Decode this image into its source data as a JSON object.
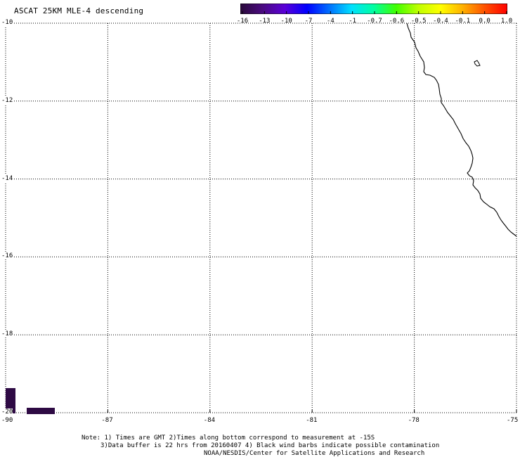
{
  "title": "ASCAT 25KM MLE-4 descending",
  "colorbar": {
    "labels": [
      "-16",
      "-13",
      "-10",
      "-7",
      "-4",
      "-1",
      "-0.7",
      "-0.6",
      "-0.5",
      "-0.4",
      "-0.1",
      "0.0",
      "1.0"
    ],
    "colors": [
      "#2a0a3a",
      "#4a0a80",
      "#5a00d8",
      "#0000ff",
      "#0070ff",
      "#00e0ff",
      "#00ffa0",
      "#40ff00",
      "#c0ff00",
      "#ffff00",
      "#ffb000",
      "#ff5000",
      "#ff0000"
    ]
  },
  "map": {
    "lon_labels": [
      "-90",
      "-87",
      "-84",
      "-81",
      "-78",
      "-75"
    ],
    "lat_labels": [
      "-10",
      "-12",
      "-14",
      "-16",
      "-18",
      "-20"
    ],
    "lon_range": [
      -90,
      -75
    ],
    "lat_range": [
      -20,
      -10
    ],
    "grid": "dotted",
    "coastline_color": "#000000"
  },
  "notes": {
    "line1": "Note: 1) Times are GMT 2)Times along bottom correspond to measurement at -15S",
    "line2": "3)Data buffer is 22 hrs from 20160407 4) Black wind barbs indicate possible contamination",
    "line3": "NOAA/NESDIS/Center for Satellite Applications and Research"
  }
}
